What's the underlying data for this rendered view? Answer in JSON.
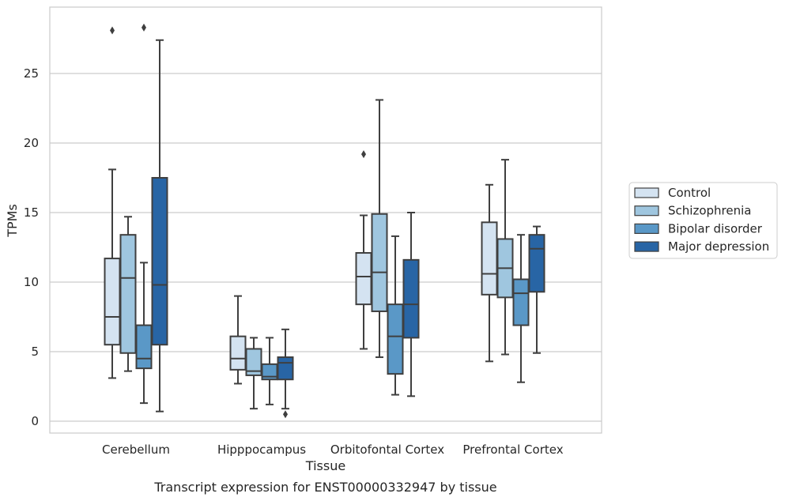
{
  "chart_data": {
    "type": "box",
    "caption": "Transcript expression for ENST00000332947 by tissue",
    "xlabel": "Tissue",
    "ylabel": "TPMs",
    "ylim": [
      -0.8,
      29.2
    ],
    "yticks": [
      0,
      5,
      10,
      15,
      20,
      25
    ],
    "grid": "horizontal",
    "legend_position": "right",
    "categories": [
      "Cerebellum",
      "Hipppocampus",
      "Orbitofontal Cortex",
      "Prefrontal Cortex"
    ],
    "series": [
      {
        "name": "Control",
        "color": "#d4e3f1",
        "boxes": [
          {
            "whisker_low": 3.1,
            "q1": 5.5,
            "median": 7.5,
            "q3": 11.7,
            "whisker_high": 18.1,
            "outliers": [
              28.1
            ]
          },
          {
            "whisker_low": 2.7,
            "q1": 3.7,
            "median": 4.5,
            "q3": 6.1,
            "whisker_high": 9.0,
            "outliers": []
          },
          {
            "whisker_low": 5.2,
            "q1": 8.4,
            "median": 10.4,
            "q3": 12.1,
            "whisker_high": 14.8,
            "outliers": [
              19.2
            ]
          },
          {
            "whisker_low": 4.3,
            "q1": 9.1,
            "median": 10.6,
            "q3": 14.3,
            "whisker_high": 17.0,
            "outliers": []
          }
        ]
      },
      {
        "name": "Schizophrenia",
        "color": "#9fc6df",
        "boxes": [
          {
            "whisker_low": 3.6,
            "q1": 4.9,
            "median": 10.3,
            "q3": 13.4,
            "whisker_high": 14.7,
            "outliers": []
          },
          {
            "whisker_low": 0.9,
            "q1": 3.3,
            "median": 3.6,
            "q3": 5.2,
            "whisker_high": 6.0,
            "outliers": []
          },
          {
            "whisker_low": 4.6,
            "q1": 7.9,
            "median": 10.7,
            "q3": 14.9,
            "whisker_high": 23.1,
            "outliers": []
          },
          {
            "whisker_low": 4.8,
            "q1": 8.9,
            "median": 11.0,
            "q3": 13.1,
            "whisker_high": 18.8,
            "outliers": []
          }
        ]
      },
      {
        "name": "Bipolar disorder",
        "color": "#5a98c7",
        "boxes": [
          {
            "whisker_low": 1.3,
            "q1": 3.8,
            "median": 4.5,
            "q3": 6.9,
            "whisker_high": 11.4,
            "outliers": [
              28.3
            ]
          },
          {
            "whisker_low": 1.2,
            "q1": 3.0,
            "median": 3.2,
            "q3": 4.1,
            "whisker_high": 6.0,
            "outliers": []
          },
          {
            "whisker_low": 1.9,
            "q1": 3.4,
            "median": 6.1,
            "q3": 8.4,
            "whisker_high": 13.3,
            "outliers": []
          },
          {
            "whisker_low": 2.8,
            "q1": 6.9,
            "median": 9.2,
            "q3": 10.2,
            "whisker_high": 13.4,
            "outliers": []
          }
        ]
      },
      {
        "name": "Major depression",
        "color": "#2865a5",
        "boxes": [
          {
            "whisker_low": 0.7,
            "q1": 5.5,
            "median": 9.8,
            "q3": 17.5,
            "whisker_high": 27.4,
            "outliers": []
          },
          {
            "whisker_low": 0.9,
            "q1": 3.0,
            "median": 4.2,
            "q3": 4.6,
            "whisker_high": 6.6,
            "outliers": [
              0.5
            ]
          },
          {
            "whisker_low": 1.8,
            "q1": 6.0,
            "median": 8.4,
            "q3": 11.6,
            "whisker_high": 15.0,
            "outliers": []
          },
          {
            "whisker_low": 4.9,
            "q1": 9.3,
            "median": 12.4,
            "q3": 13.4,
            "whisker_high": 14.0,
            "outliers": []
          }
        ]
      }
    ]
  }
}
